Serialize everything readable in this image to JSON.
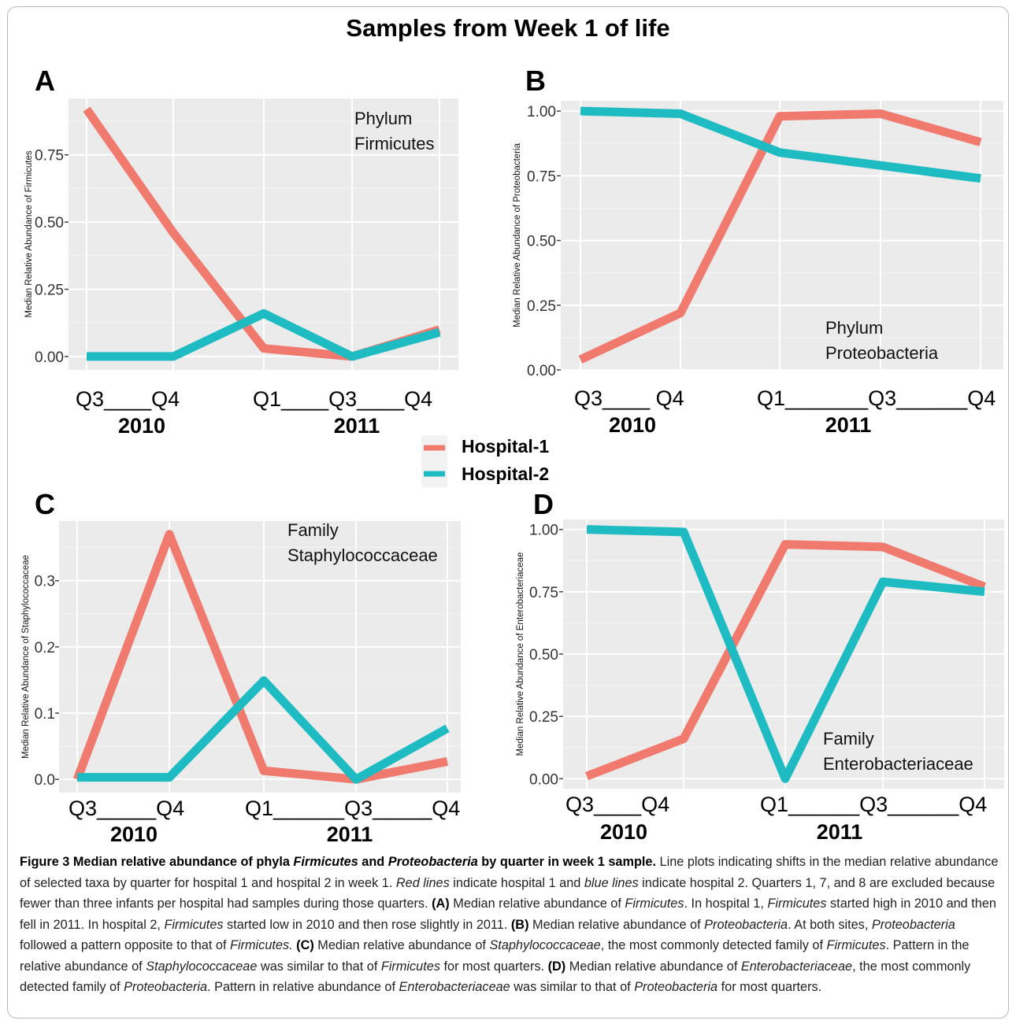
{
  "figure": {
    "title": "Samples from Week 1 of life",
    "legend": [
      {
        "label": "Hospital-1",
        "color": "#F07A6E"
      },
      {
        "label": "Hospital-2",
        "color": "#1EBCC2"
      }
    ]
  },
  "chart_data": [
    {
      "panel": "A",
      "type": "line",
      "ylabel": "Median Relative Abundance of Firmicutes",
      "annotation": [
        "Phylum",
        "Firmicutes"
      ],
      "x": [
        "Q3",
        "Q4",
        "Q1",
        "Q3",
        "Q4"
      ],
      "x_axis_text": [
        "Q3____Q4",
        "Q1____Q3____Q4"
      ],
      "year_labels": [
        "2010",
        "2011"
      ],
      "ylim": [
        -0.05,
        0.96
      ],
      "yticks": [
        0,
        0.25,
        0.5,
        0.75
      ],
      "ytick_labels": [
        "0.00",
        "0.25",
        "0.50",
        "0.75"
      ],
      "grid": true,
      "series": [
        {
          "color": "#F07A6E",
          "values": [
            0.92,
            0.46,
            0.03,
            0.0,
            0.1
          ]
        },
        {
          "color": "#1EBCC2",
          "values": [
            0.0,
            0.0,
            0.16,
            0.0,
            0.09
          ]
        }
      ]
    },
    {
      "panel": "B",
      "type": "line",
      "ylabel": "Median Relative Abundance of Proteobacteria",
      "annotation": [
        "Phylum",
        "Proteobacteria"
      ],
      "x": [
        "Q3",
        "Q4",
        "Q1",
        "Q3",
        "Q4"
      ],
      "x_axis_text": [
        "Q3____ Q4",
        "Q1_______Q3______Q4"
      ],
      "year_labels": [
        "2010",
        "2011"
      ],
      "ylim": [
        0,
        1.04
      ],
      "yticks": [
        0,
        0.25,
        0.5,
        0.75,
        1.0
      ],
      "ytick_labels": [
        "0.00",
        "0.25",
        "0.50",
        "0.75",
        "1.00"
      ],
      "grid": true,
      "series": [
        {
          "color": "#F07A6E",
          "values": [
            0.04,
            0.22,
            0.98,
            0.99,
            0.88
          ]
        },
        {
          "color": "#1EBCC2",
          "values": [
            1.0,
            0.99,
            0.84,
            0.79,
            0.74
          ]
        }
      ]
    },
    {
      "panel": "C",
      "type": "line",
      "ylabel": "Median Relative Abundance of Staphylococcaceae",
      "annotation": [
        "Family",
        "Staphylococcaceae"
      ],
      "x": [
        "Q3",
        "Q4",
        "Q1",
        "Q3",
        "Q4"
      ],
      "x_axis_text": [
        "Q3_____Q4",
        "Q1______Q3_____Q4"
      ],
      "year_labels": [
        "2010",
        "2011"
      ],
      "ylim": [
        -0.02,
        0.39
      ],
      "yticks": [
        0,
        0.1,
        0.2,
        0.3
      ],
      "ytick_labels": [
        "0.0",
        "0.1",
        "0.2",
        "0.3"
      ],
      "grid": true,
      "series": [
        {
          "color": "#F07A6E",
          "values": [
            0.0,
            0.37,
            0.013,
            0.0,
            0.027
          ]
        },
        {
          "color": "#1EBCC2",
          "values": [
            0.003,
            0.003,
            0.149,
            0.0,
            0.077
          ]
        }
      ]
    },
    {
      "panel": "D",
      "type": "line",
      "ylabel": "Median Relative Abundance of Enterobacteriaceae",
      "annotation": [
        "Family",
        "Enterobacteriaceae"
      ],
      "x": [
        "Q3",
        "Q4",
        "Q1",
        "Q3",
        "Q4"
      ],
      "x_axis_text": [
        "Q3____Q4",
        "Q1______Q3______Q4"
      ],
      "year_labels": [
        "2010",
        "2011"
      ],
      "ylim": [
        -0.04,
        1.04
      ],
      "yticks": [
        0,
        0.25,
        0.5,
        0.75,
        1.0
      ],
      "ytick_labels": [
        "0.00",
        "0.25",
        "0.50",
        "0.75",
        "1.00"
      ],
      "grid": true,
      "series": [
        {
          "color": "#F07A6E",
          "values": [
            0.01,
            0.16,
            0.94,
            0.93,
            0.77
          ]
        },
        {
          "color": "#1EBCC2",
          "values": [
            1.0,
            0.99,
            0.0,
            0.79,
            0.75
          ]
        }
      ]
    }
  ],
  "caption": {
    "bold_1": "Figure 3 Median relative abundance of phyla ",
    "bold_italic_1": "Firmicutes",
    "bold_2": " and ",
    "bold_italic_2": "Proteobacteria",
    "bold_3": " by quarter in week 1 sample.",
    "t1": " Line plots indicating shifts in the median relative abundance of selected taxa by quarter for hospital 1 and hospital 2 in week 1. ",
    "i1": "Red lines",
    "t2": " indicate hospital 1 and ",
    "i2": "blue lines",
    "t3": " indicate hospital 2. Quarters 1, 7, and 8 are excluded because fewer than three infants per hospital had samples during those quarters. ",
    "bA": "(A)",
    "t4": " Median relative abundance of ",
    "i3": "Firmicutes",
    "t5": ". In hospital 1, ",
    "i4": "Firmicutes",
    "t6": " started high in 2010 and then fell in 2011. In hospital 2, ",
    "i5": "Firmicutes",
    "t7": " started low in 2010 and then rose slightly in 2011. ",
    "bB": "(B)",
    "t8": " Median relative abundance of ",
    "i6": "Proteobacteria",
    "t9": ". At both sites, ",
    "i7": "Proteobacteria",
    "t10": " followed a pattern opposite to that of ",
    "i8": "Firmicutes.",
    "t11": " ",
    "bC": "(C)",
    "t12": " Median relative abundance of ",
    "i9": "Staphylococcaceae",
    "t13": ", the most commonly detected family of ",
    "i10": "Firmicutes",
    "t14": ". Pattern in the relative abundance of ",
    "i11": "Staphylococcaceae",
    "t15": " was similar to that of ",
    "i12": "Firmicutes",
    "t16": " for most quarters. ",
    "bD": "(D)",
    "t17": " Median relative abundance of ",
    "i13": "Enterobacteriaceae",
    "t18": ", the most commonly detected family of ",
    "i14": "Proteobacteria",
    "t19": ". Pattern in relative abundance of ",
    "i15": "Enterobacteriaceae",
    "t20": " was similar to that of ",
    "i16": "Proteobacteria",
    "t21": " for most quarters."
  }
}
